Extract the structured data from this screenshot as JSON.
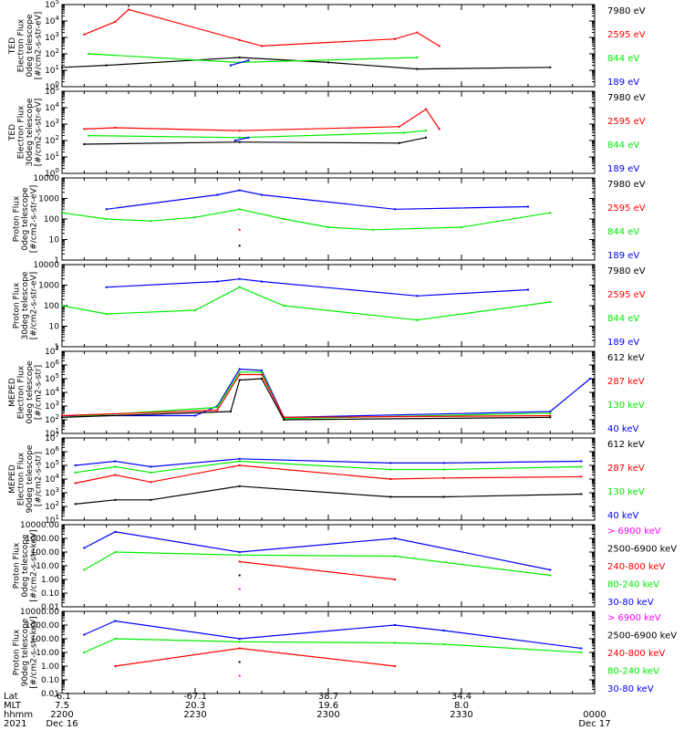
{
  "colors": {
    "black": "#000000",
    "red": "#ff0000",
    "green": "#00ee00",
    "blue": "#0000ff",
    "magenta": "#ff00ff"
  },
  "chart_data": [
    {
      "type": "line",
      "ylabel": [
        "TED",
        "Electron Flux",
        "0deg telescope",
        "[#/cm2-s-str-eV]"
      ],
      "yscale": "log",
      "ylim": [
        1,
        100000
      ],
      "yticks": [
        "10^0",
        "10^1",
        "10^2",
        "10^3",
        "10^4",
        "10^5"
      ],
      "legend": [
        {
          "label": "7980 eV",
          "color": "black"
        },
        {
          "label": "2595 eV",
          "color": "red"
        },
        {
          "label": "844 eV",
          "color": "green"
        },
        {
          "label": "189 eV",
          "color": "blue"
        }
      ],
      "series": [
        {
          "color": "black",
          "points": [
            [
              2200,
              15
            ],
            [
              2210,
              20
            ],
            [
              2240,
              60
            ],
            [
              2300,
              30
            ],
            [
              2320,
              12
            ],
            [
              2350,
              15
            ]
          ]
        },
        {
          "color": "red",
          "points": [
            [
              2205,
              1500
            ],
            [
              2212,
              9000
            ],
            [
              2215,
              50000
            ],
            [
              2240,
              700
            ],
            [
              2245,
              300
            ],
            [
              2315,
              800
            ],
            [
              2320,
              2000
            ],
            [
              2325,
              300
            ]
          ]
        },
        {
          "color": "green",
          "points": [
            [
              2206,
              100
            ],
            [
              2240,
              30
            ],
            [
              2320,
              60
            ]
          ]
        },
        {
          "color": "blue",
          "points": [
            [
              2238,
              20
            ],
            [
              2242,
              40
            ]
          ]
        }
      ]
    },
    {
      "type": "line",
      "ylabel": [
        "TED",
        "Electron Flux",
        "30deg telescope",
        "[#/cm2-s-str-eV]"
      ],
      "yscale": "log",
      "ylim": [
        1,
        100000
      ],
      "yticks": [
        "10^0",
        "10^1",
        "10^2",
        "10^3",
        "10^4",
        "10^5"
      ],
      "legend": [
        {
          "label": "7980 eV",
          "color": "black"
        },
        {
          "label": "2595 eV",
          "color": "red"
        },
        {
          "label": "844 eV",
          "color": "green"
        },
        {
          "label": "189 eV",
          "color": "blue"
        }
      ],
      "series": [
        {
          "color": "black",
          "points": [
            [
              2205,
              60
            ],
            [
              2240,
              80
            ],
            [
              2316,
              70
            ],
            [
              2322,
              150
            ]
          ]
        },
        {
          "color": "red",
          "points": [
            [
              2205,
              500
            ],
            [
              2212,
              600
            ],
            [
              2240,
              400
            ],
            [
              2316,
              700
            ],
            [
              2322,
              8000
            ],
            [
              2325,
              500
            ]
          ]
        },
        {
          "color": "green",
          "points": [
            [
              2206,
              200
            ],
            [
              2240,
              150
            ],
            [
              2317,
              300
            ],
            [
              2322,
              400
            ]
          ]
        },
        {
          "color": "blue",
          "points": [
            [
              2239,
              100
            ],
            [
              2242,
              150
            ]
          ]
        }
      ]
    },
    {
      "type": "line",
      "ylabel": [
        "Proton Flux",
        "0deg telescope",
        "[#/cm2-s-str-eV]"
      ],
      "yscale": "log",
      "ylim": [
        1,
        10000
      ],
      "yticks": [
        "1",
        "10",
        "100",
        "1000",
        "10000"
      ],
      "legend": [
        {
          "label": "7980 eV",
          "color": "black"
        },
        {
          "label": "2595 eV",
          "color": "red"
        },
        {
          "label": "844 eV",
          "color": "green"
        },
        {
          "label": "189 eV",
          "color": "blue"
        }
      ],
      "series": [
        {
          "color": "green",
          "points": [
            [
              2200,
              200
            ],
            [
              2210,
              100
            ],
            [
              2220,
              80
            ],
            [
              2230,
              120
            ],
            [
              2240,
              300
            ],
            [
              2250,
              100
            ],
            [
              2300,
              40
            ],
            [
              2310,
              30
            ],
            [
              2330,
              40
            ],
            [
              2350,
              200
            ]
          ]
        },
        {
          "color": "blue",
          "points": [
            [
              2210,
              300
            ],
            [
              2235,
              1500
            ],
            [
              2240,
              2500
            ],
            [
              2245,
              1500
            ],
            [
              2315,
              300
            ],
            [
              2345,
              400
            ]
          ]
        },
        {
          "color": "red",
          "points": [
            [
              2240,
              30
            ]
          ]
        },
        {
          "color": "black",
          "points": [
            [
              2240,
              5
            ]
          ]
        }
      ]
    },
    {
      "type": "line",
      "ylabel": [
        "Proton Flux",
        "30deg telescope",
        "[#/cm2-s-str-eV]"
      ],
      "yscale": "log",
      "ylim": [
        1,
        10000
      ],
      "yticks": [
        "1",
        "10",
        "100",
        "1000",
        "10000"
      ],
      "legend": [
        {
          "label": "7980 eV",
          "color": "black"
        },
        {
          "label": "2595 eV",
          "color": "red"
        },
        {
          "label": "844 eV",
          "color": "green"
        },
        {
          "label": "189 eV",
          "color": "blue"
        }
      ],
      "series": [
        {
          "color": "green",
          "points": [
            [
              2200,
              100
            ],
            [
              2210,
              40
            ],
            [
              2230,
              60
            ],
            [
              2240,
              800
            ],
            [
              2250,
              100
            ],
            [
              2320,
              20
            ],
            [
              2350,
              150
            ]
          ]
        },
        {
          "color": "blue",
          "points": [
            [
              2210,
              800
            ],
            [
              2235,
              1500
            ],
            [
              2240,
              2000
            ],
            [
              2245,
              1500
            ],
            [
              2320,
              300
            ],
            [
              2345,
              600
            ]
          ]
        }
      ]
    },
    {
      "type": "line",
      "ylabel": [
        "MEPED",
        "Electron Flux",
        "0deg telescope",
        "[#/cm2-s-str]"
      ],
      "yscale": "log",
      "ylim": [
        10,
        10000000
      ],
      "yticks": [
        "10^1",
        "10^2",
        "10^3",
        "10^4",
        "10^5",
        "10^6",
        "10^7"
      ],
      "legend": [
        {
          "label": "612 keV",
          "color": "black"
        },
        {
          "label": "287 keV",
          "color": "red"
        },
        {
          "label": "130 keV",
          "color": "green"
        },
        {
          "label": "40 keV",
          "color": "blue"
        }
      ],
      "series": [
        {
          "color": "blue",
          "points": [
            [
              2200,
              200
            ],
            [
              2230,
              200
            ],
            [
              2235,
              1000
            ],
            [
              2240,
              500000
            ],
            [
              2245,
              400000
            ],
            [
              2250,
              150
            ],
            [
              2350,
              400
            ],
            [
              2359,
              100000
            ]
          ]
        },
        {
          "color": "green",
          "points": [
            [
              2200,
              150
            ],
            [
              2235,
              800
            ],
            [
              2240,
              300000
            ],
            [
              2245,
              300000
            ],
            [
              2250,
              120
            ],
            [
              2350,
              300
            ]
          ]
        },
        {
          "color": "red",
          "points": [
            [
              2200,
              200
            ],
            [
              2235,
              500
            ],
            [
              2240,
              200000
            ],
            [
              2245,
              200000
            ],
            [
              2250,
              150
            ],
            [
              2350,
              200
            ]
          ]
        },
        {
          "color": "black",
          "points": [
            [
              2200,
              150
            ],
            [
              2238,
              400
            ],
            [
              2240,
              80000
            ],
            [
              2245,
              100000
            ],
            [
              2250,
              100
            ],
            [
              2350,
              150
            ]
          ]
        }
      ]
    },
    {
      "type": "line",
      "ylabel": [
        "MEPED",
        "Electron Flux",
        "90deg telescope",
        "[#/cm2-s-str]"
      ],
      "yscale": "log",
      "ylim": [
        10,
        10000000
      ],
      "yticks": [
        "10^1",
        "10^2",
        "10^3",
        "10^4",
        "10^5",
        "10^6",
        "10^7"
      ],
      "legend": [
        {
          "label": "612 keV",
          "color": "black"
        },
        {
          "label": "287 keV",
          "color": "red"
        },
        {
          "label": "130 keV",
          "color": "green"
        },
        {
          "label": "40 keV",
          "color": "blue"
        }
      ],
      "series": [
        {
          "color": "blue",
          "points": [
            [
              2203,
              100000
            ],
            [
              2212,
              200000
            ],
            [
              2220,
              80000
            ],
            [
              2240,
              300000
            ],
            [
              2314,
              150000
            ],
            [
              2326,
              150000
            ],
            [
              2357,
              200000
            ]
          ]
        },
        {
          "color": "green",
          "points": [
            [
              2203,
              30000
            ],
            [
              2212,
              80000
            ],
            [
              2220,
              30000
            ],
            [
              2240,
              200000
            ],
            [
              2314,
              50000
            ],
            [
              2326,
              50000
            ],
            [
              2357,
              80000
            ]
          ]
        },
        {
          "color": "red",
          "points": [
            [
              2203,
              5000
            ],
            [
              2212,
              20000
            ],
            [
              2220,
              6000
            ],
            [
              2240,
              100000
            ],
            [
              2314,
              10000
            ],
            [
              2326,
              12000
            ],
            [
              2357,
              15000
            ]
          ]
        },
        {
          "color": "black",
          "points": [
            [
              2203,
              150
            ],
            [
              2212,
              300
            ],
            [
              2220,
              300
            ],
            [
              2240,
              3000
            ],
            [
              2314,
              500
            ],
            [
              2326,
              500
            ],
            [
              2357,
              800
            ]
          ]
        }
      ]
    },
    {
      "type": "line",
      "ylabel": [
        "Proton Flux",
        "0deg telescope",
        "[#/cm2-s-str-keV]"
      ],
      "yscale": "log",
      "ylim": [
        0.01,
        10000
      ],
      "yticks": [
        "0.01",
        "0.10",
        "1.00",
        "10.00",
        "100.00",
        "1000.00",
        "10000.00"
      ],
      "legend": [
        {
          "label": "> 6900 keV",
          "color": "magenta"
        },
        {
          "label": "2500-6900 keV",
          "color": "black"
        },
        {
          "label": "240-800 keV",
          "color": "red"
        },
        {
          "label": "80-240 keV",
          "color": "green"
        },
        {
          "label": "30-80 keV",
          "color": "blue"
        }
      ],
      "series": [
        {
          "color": "blue",
          "points": [
            [
              2205,
              200
            ],
            [
              2212,
              3000
            ],
            [
              2240,
              100
            ],
            [
              2315,
              1000
            ],
            [
              2350,
              5
            ]
          ]
        },
        {
          "color": "green",
          "points": [
            [
              2205,
              5
            ],
            [
              2212,
              100
            ],
            [
              2240,
              60
            ],
            [
              2315,
              50
            ],
            [
              2350,
              2
            ]
          ]
        },
        {
          "color": "red",
          "points": [
            [
              2240,
              20
            ],
            [
              2315,
              1
            ]
          ]
        },
        {
          "color": "black",
          "points": [
            [
              2240,
              2
            ]
          ]
        },
        {
          "color": "magenta",
          "points": [
            [
              2240,
              0.2
            ]
          ]
        }
      ]
    },
    {
      "type": "line",
      "ylabel": [
        "Proton Flux",
        "90deg telescope",
        "[#/cm2-s-str-keV]"
      ],
      "yscale": "log",
      "ylim": [
        0.01,
        10000
      ],
      "yticks": [
        "0.01",
        "0.10",
        "1.00",
        "10.00",
        "100.00",
        "1000.00",
        "10000.00"
      ],
      "legend": [
        {
          "label": "> 6900 keV",
          "color": "magenta"
        },
        {
          "label": "2500-6900 keV",
          "color": "black"
        },
        {
          "label": "240-800 keV",
          "color": "red"
        },
        {
          "label": "80-240 keV",
          "color": "green"
        },
        {
          "label": "30-80 keV",
          "color": "blue"
        }
      ],
      "series": [
        {
          "color": "blue",
          "points": [
            [
              2205,
              200
            ],
            [
              2212,
              2000
            ],
            [
              2240,
              100
            ],
            [
              2315,
              1000
            ],
            [
              2326,
              400
            ],
            [
              2357,
              20
            ]
          ]
        },
        {
          "color": "green",
          "points": [
            [
              2205,
              10
            ],
            [
              2212,
              100
            ],
            [
              2240,
              60
            ],
            [
              2315,
              50
            ],
            [
              2326,
              40
            ],
            [
              2357,
              10
            ]
          ]
        },
        {
          "color": "red",
          "points": [
            [
              2212,
              1
            ],
            [
              2240,
              20
            ],
            [
              2315,
              1
            ]
          ]
        },
        {
          "color": "black",
          "points": [
            [
              2240,
              2
            ]
          ]
        },
        {
          "color": "magenta",
          "points": [
            [
              2240,
              0.2
            ]
          ]
        }
      ]
    }
  ],
  "x_axis": {
    "row_labels": [
      "Lat",
      "MLT",
      "hhmm",
      "2021"
    ],
    "ticks": [
      {
        "lat": "-6.1",
        "mlt": "7.5",
        "hhmm": "2200",
        "date": "Dec 16"
      },
      {
        "lat": "-67.1",
        "mlt": "20.3",
        "hhmm": "2230",
        "date": ""
      },
      {
        "lat": "38.7",
        "mlt": "19.6",
        "hhmm": "2300",
        "date": ""
      },
      {
        "lat": "34.4",
        "mlt": "8.0",
        "hhmm": "2330",
        "date": ""
      },
      {
        "lat": "",
        "mlt": "",
        "hhmm": "0000",
        "date": "Dec 17"
      }
    ]
  }
}
